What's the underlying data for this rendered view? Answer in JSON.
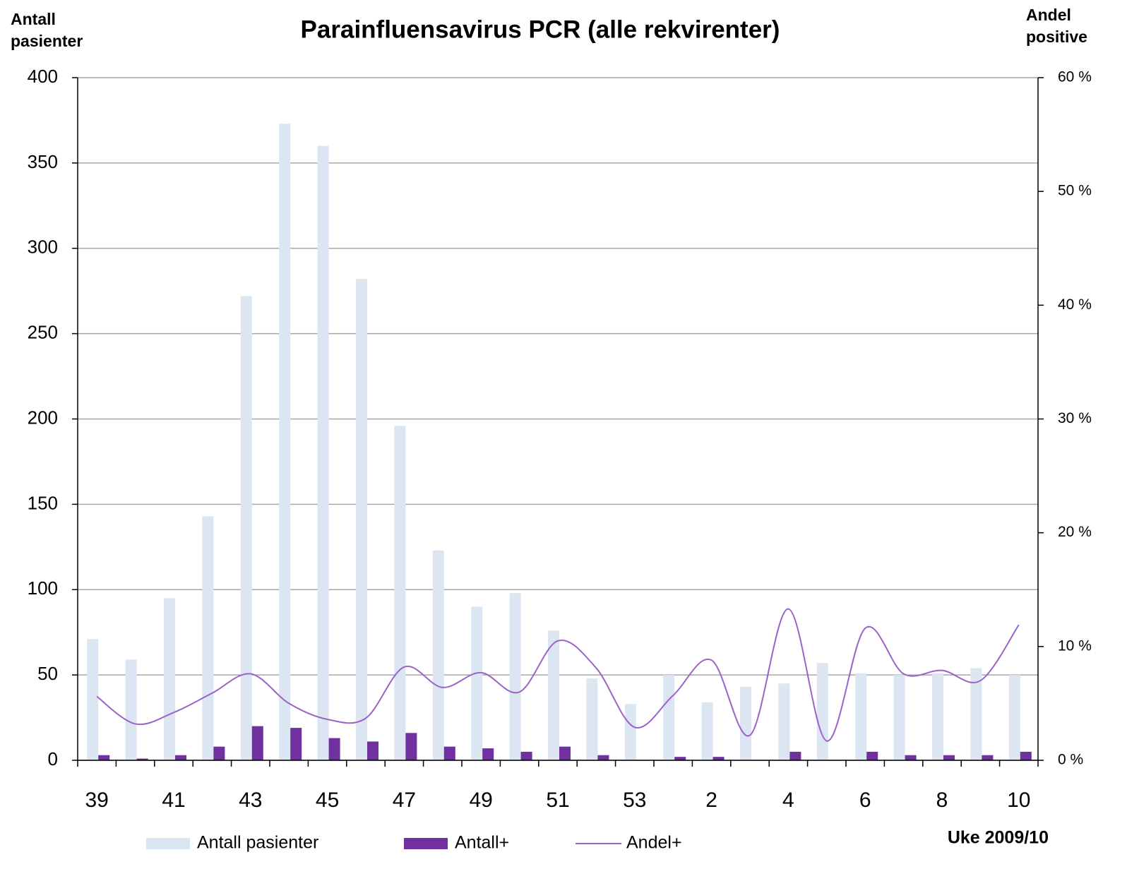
{
  "chart_data": {
    "type": "bar",
    "title": "Parainfluensavirus PCR (alle rekvirenter)",
    "ylabel": "Antall pasienter",
    "y2label": "Andel positive",
    "xlabel": "Uke 2009/10",
    "categories": [
      "39",
      null,
      "41",
      null,
      "43",
      null,
      "45",
      null,
      "47",
      null,
      "49",
      null,
      "51",
      null,
      "53",
      null,
      "2",
      null,
      "4",
      null,
      "6",
      null,
      "8",
      null,
      "10"
    ],
    "series": [
      {
        "name": "Antall pasienter",
        "color": "#dce6f2",
        "values": [
          71,
          59,
          95,
          143,
          272,
          373,
          360,
          282,
          196,
          123,
          90,
          98,
          76,
          48,
          33,
          50,
          34,
          43,
          45,
          57,
          51,
          50,
          51,
          54,
          50
        ]
      },
      {
        "name": "Antall+",
        "color": "#7030a0",
        "values": [
          3,
          1,
          3,
          8,
          20,
          19,
          13,
          11,
          16,
          8,
          7,
          5,
          8,
          3,
          0,
          2,
          2,
          0,
          5,
          0,
          5,
          3,
          3,
          3,
          5
        ]
      },
      {
        "name": "Andel+",
        "color": "#9b62c8",
        "type": "line",
        "axis": "y2",
        "values": [
          5.6,
          3.2,
          4.2,
          5.9,
          7.6,
          5.0,
          3.6,
          3.7,
          8.2,
          6.4,
          7.7,
          6.0,
          10.5,
          8.1,
          2.9,
          5.7,
          8.8,
          2.2,
          13.3,
          1.7,
          11.6,
          7.6,
          7.9,
          7.0,
          11.9
        ]
      }
    ],
    "ylim": [
      0,
      400
    ],
    "yticks": [
      0,
      50,
      100,
      150,
      200,
      250,
      300,
      350,
      400
    ],
    "y2lim": [
      0,
      60
    ],
    "y2ticks": [
      {
        "value": 0,
        "label": "0 %"
      },
      {
        "value": 10,
        "label": "10 %"
      },
      {
        "value": 20,
        "label": "20 %"
      },
      {
        "value": 30,
        "label": "30 %"
      },
      {
        "value": 40,
        "label": "40 %"
      },
      {
        "value": 50,
        "label": "50 %"
      },
      {
        "value": 60,
        "label": "60 %"
      }
    ],
    "grid": true
  }
}
